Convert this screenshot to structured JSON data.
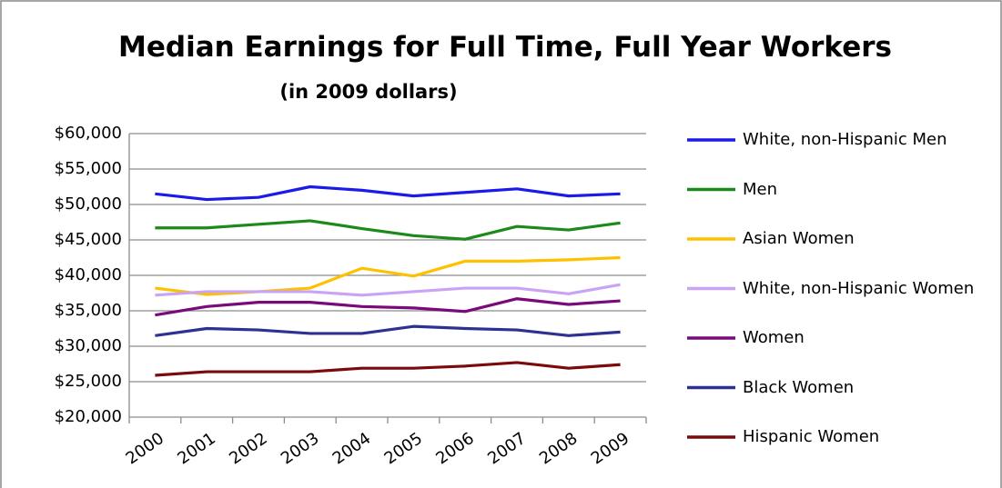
{
  "chart_data": {
    "type": "line",
    "title": "Median Earnings for Full Time, Full Year Workers",
    "subtitle": "(in 2009 dollars)",
    "categories": [
      "2000",
      "2001",
      "2002",
      "2003",
      "2004",
      "2005",
      "2006",
      "2007",
      "2008",
      "2009"
    ],
    "series": [
      {
        "name": "White, non-Hispanic Men",
        "color": "#1a1aeb",
        "values": [
          51500,
          50700,
          51000,
          52500,
          52000,
          51200,
          51700,
          52200,
          51200,
          51500
        ]
      },
      {
        "name": "Men",
        "color": "#1a8a1a",
        "values": [
          46700,
          46700,
          47200,
          47700,
          46600,
          45600,
          45100,
          46900,
          46400,
          47400
        ]
      },
      {
        "name": "Asian Women",
        "color": "#ffc000",
        "values": [
          38200,
          37300,
          37700,
          38200,
          41000,
          39900,
          42000,
          42000,
          42200,
          42500
        ]
      },
      {
        "name": "White, non-Hispanic Women",
        "color": "#c9a3f5",
        "values": [
          37200,
          37700,
          37700,
          37700,
          37200,
          37700,
          38200,
          38200,
          37400,
          38700
        ]
      },
      {
        "name": "Women",
        "color": "#7a0a7a",
        "values": [
          34400,
          35600,
          36200,
          36200,
          35600,
          35400,
          34900,
          36700,
          35900,
          36400
        ]
      },
      {
        "name": "Black Women",
        "color": "#2e3192",
        "values": [
          31500,
          32500,
          32300,
          31800,
          31800,
          32800,
          32500,
          32300,
          31500,
          32000
        ]
      },
      {
        "name": "Hispanic Women",
        "color": "#7b0a0a",
        "values": [
          25900,
          26400,
          26400,
          26400,
          26900,
          26900,
          27200,
          27700,
          26900,
          27400
        ]
      }
    ],
    "ylim": [
      20000,
      60000
    ],
    "yticks": [
      {
        "value": 20000,
        "label": "$20,000"
      },
      {
        "value": 25000,
        "label": "$25,000"
      },
      {
        "value": 30000,
        "label": "$30,000"
      },
      {
        "value": 35000,
        "label": "$35,000"
      },
      {
        "value": 40000,
        "label": "$40,000"
      },
      {
        "value": 45000,
        "label": "$45,000"
      },
      {
        "value": 50000,
        "label": "$50,000"
      },
      {
        "value": 55000,
        "label": "$55,000"
      },
      {
        "value": 60000,
        "label": "$60,000"
      }
    ],
    "grid": true,
    "legend": "right"
  }
}
